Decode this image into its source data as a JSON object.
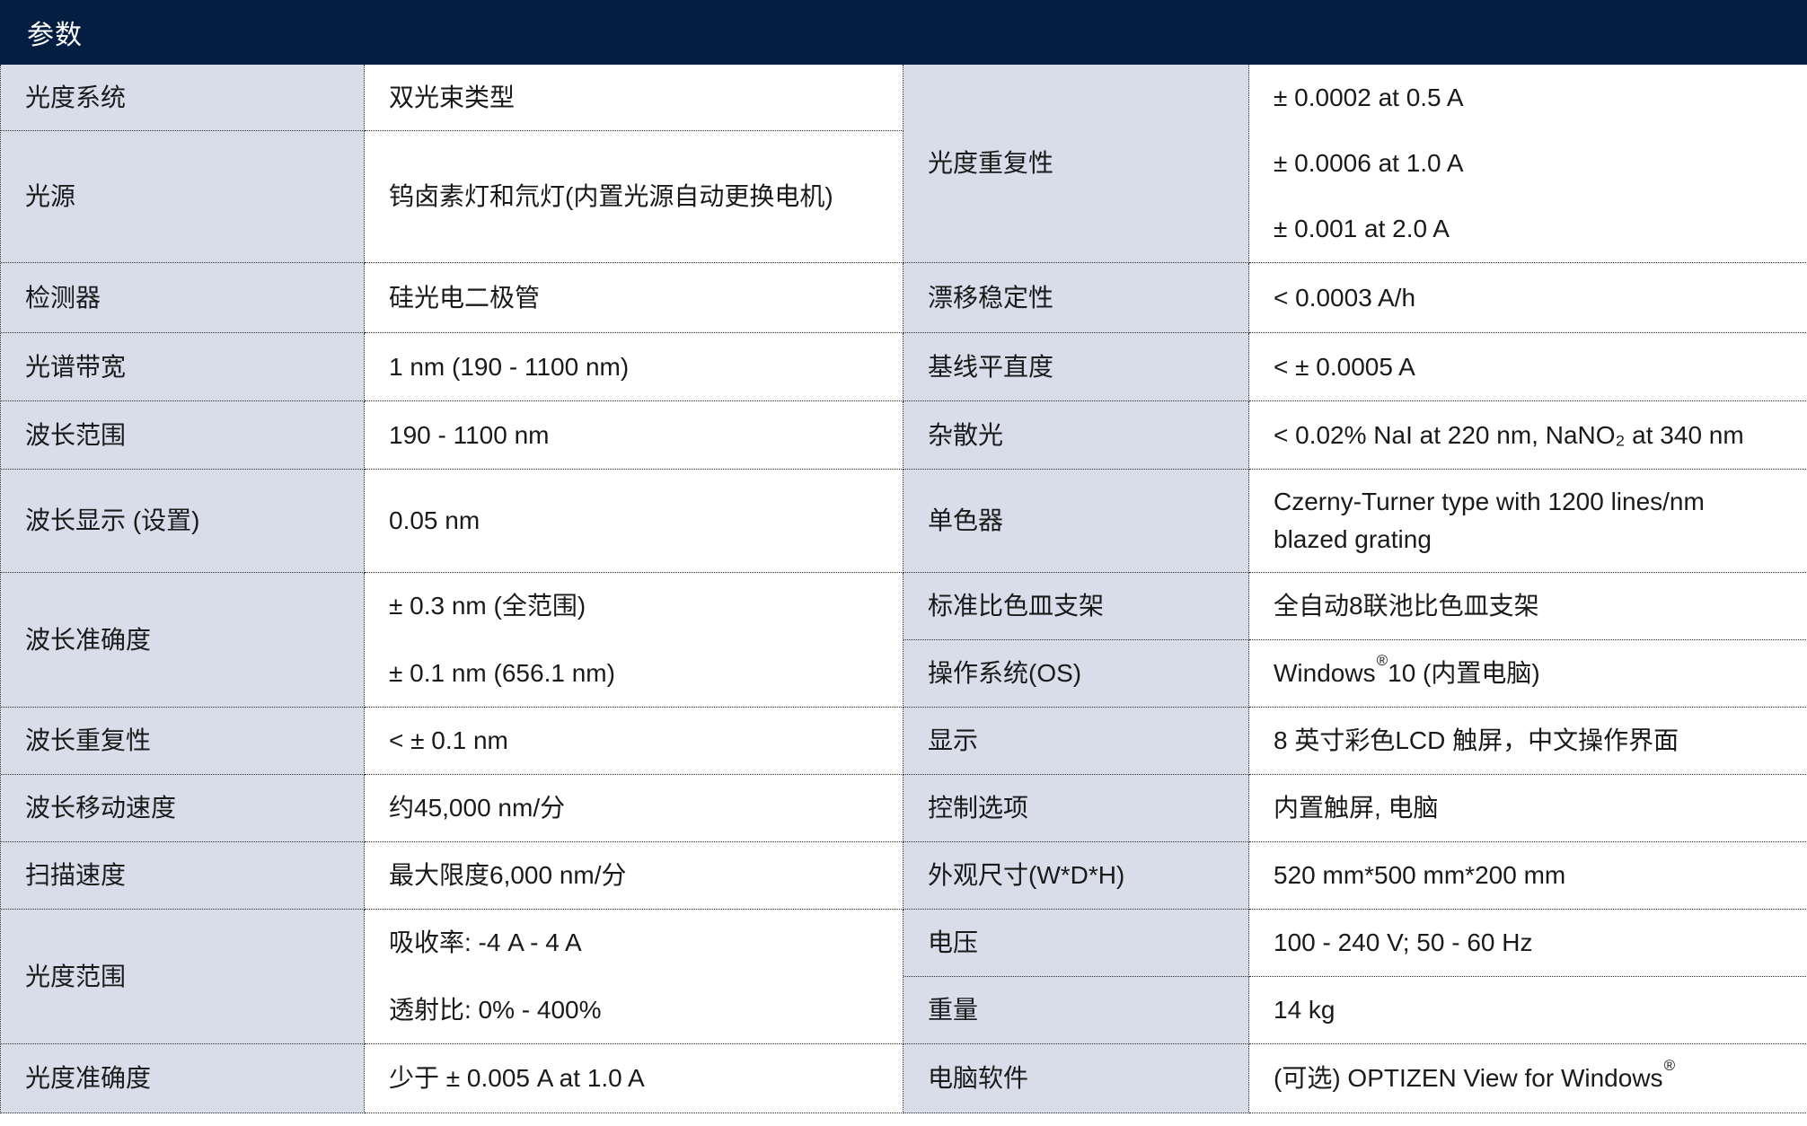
{
  "title": "参数",
  "colors": {
    "header_bg": "#041e42",
    "header_text": "#ffffff",
    "label_cell_bg": "#d9dde9",
    "value_cell_bg": "#ffffff",
    "body_text": "#1a1a1a",
    "border": "#2b2b2b"
  },
  "table": {
    "left_rows": [
      {
        "label": "光度系统",
        "value": "双光束类型"
      },
      {
        "label": "光源",
        "value": "钨卤素灯和氘灯(内置光源自动更换电机)"
      },
      {
        "label": "检测器",
        "value": "硅光电二极管"
      },
      {
        "label": "光谱带宽",
        "value": "1 nm (190 - 1100 nm)"
      },
      {
        "label": "波长范围",
        "value": "190 - 1100 nm"
      },
      {
        "label": "波长显示 (设置)",
        "value": "0.05 nm"
      },
      {
        "label": "波长准确度",
        "lines": [
          "± 0.3 nm (全范围)",
          "± 0.1 nm (656.1 nm)"
        ]
      },
      {
        "label": "波长重复性",
        "value": "< ± 0.1 nm"
      },
      {
        "label": "波长移动速度",
        "value": "约45,000 nm/分"
      },
      {
        "label": "扫描速度",
        "value": "最大限度6,000 nm/分"
      },
      {
        "label": "光度范围",
        "lines": [
          "吸收率: -4 A - 4 A",
          "透射比: 0% - 400%"
        ]
      },
      {
        "label": "光度准确度",
        "value": "少于 ± 0.005 A at 1.0 A"
      }
    ],
    "right_rows": [
      {
        "label": "光度重复性",
        "lines": [
          "± 0.0002 at 0.5 A",
          "± 0.0006 at 1.0 A",
          "± 0.001 at 2.0 A"
        ]
      },
      {
        "label": "漂移稳定性",
        "value": "< 0.0003 A/h"
      },
      {
        "label": "基线平直度",
        "value": "< ± 0.0005 A"
      },
      {
        "label": "杂散光",
        "value": "< 0.02% NaI at 220 nm, NaNO₂ at 340 nm"
      },
      {
        "label": "单色器",
        "value": "Czerny-Turner type with 1200 lines/nm blazed grating"
      },
      {
        "label": "标准比色皿支架",
        "value": "全自动8联池比色皿支架"
      },
      {
        "label": "操作系统(OS)",
        "value_pre": "Windows",
        "value_sup": "®",
        "value_post": " 10 (内置电脑)"
      },
      {
        "label": "显示",
        "value": "8 英寸彩色LCD 触屏，中文操作界面"
      },
      {
        "label": "控制选项",
        "value": "内置触屏, 电脑"
      },
      {
        "label": "外观尺寸(W*D*H)",
        "value": "520 mm*500 mm*200 mm"
      },
      {
        "label": "电压",
        "value": "100 - 240 V; 50 - 60 Hz"
      },
      {
        "label": "重量",
        "value": "14 kg"
      },
      {
        "label": "电脑软件",
        "value_pre": "(可选) OPTIZEN View for Windows",
        "value_sup": "®",
        "value_post": ""
      }
    ]
  }
}
